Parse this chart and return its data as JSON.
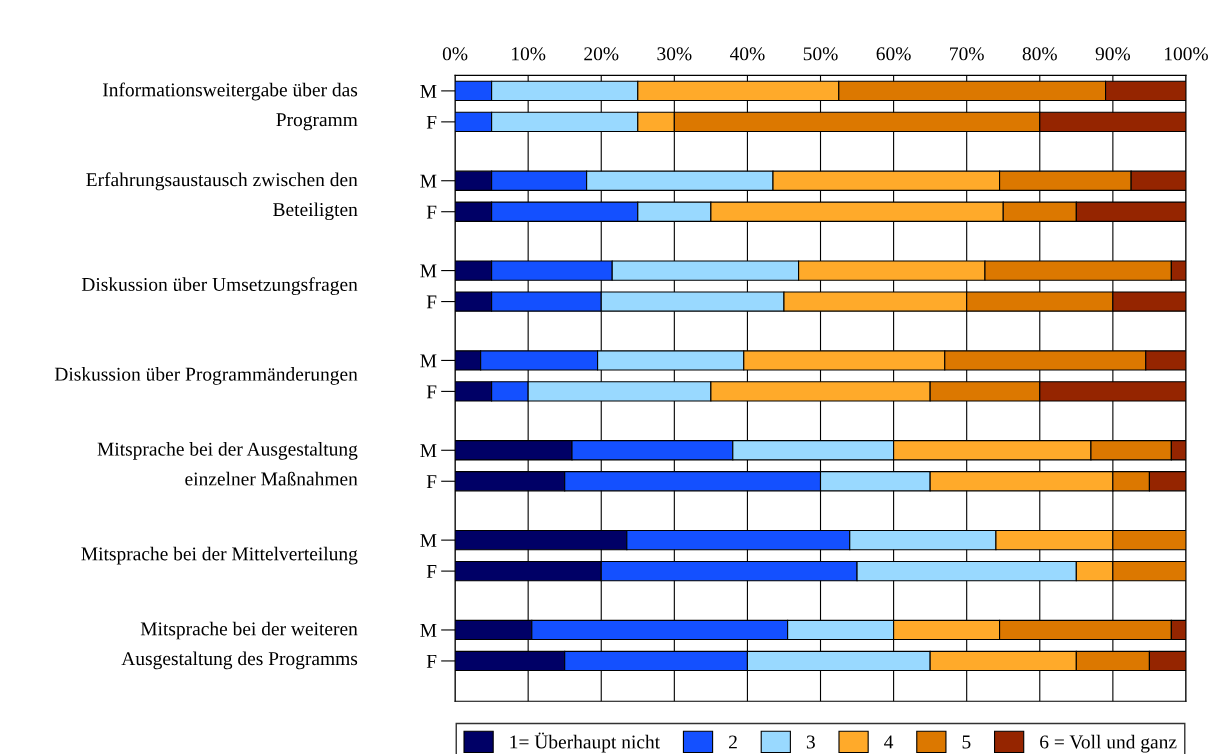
{
  "chart_data": {
    "type": "bar",
    "orientation": "horizontal",
    "stacked": true,
    "categories": [
      "M",
      "F",
      "M",
      "F",
      "M",
      "F",
      "M",
      "F",
      "M",
      "F",
      "M",
      "F",
      "M",
      "F"
    ],
    "series": [
      {
        "name": "1= Überhaupt nicht",
        "color": "#000066",
        "values": [
          0,
          0,
          5,
          5,
          5,
          5,
          3.5,
          5,
          16,
          15,
          23.5,
          20,
          10.5,
          15
        ]
      },
      {
        "name": "2",
        "color": "#1450ff",
        "values": [
          5,
          5,
          13,
          20,
          16.5,
          15,
          16,
          5,
          22,
          35,
          30.5,
          35,
          35,
          25
        ]
      },
      {
        "name": "3",
        "color": "#99d9ff",
        "values": [
          20,
          20,
          25.5,
          10,
          25.5,
          25,
          20,
          25,
          22,
          15,
          20,
          30,
          14.5,
          25
        ]
      },
      {
        "name": "4",
        "color": "#ffaa2a",
        "values": [
          27.5,
          5,
          31,
          40,
          25.5,
          25,
          27.5,
          30,
          27,
          25,
          16,
          5,
          14.5,
          20
        ]
      },
      {
        "name": "5",
        "color": "#dc7800",
        "values": [
          36.5,
          50,
          18,
          10,
          25.5,
          20,
          27.5,
          15,
          11,
          5,
          10,
          10,
          23.5,
          10
        ]
      },
      {
        "name": "6 = Voll und ganz",
        "color": "#952500",
        "values": [
          11,
          20,
          7.5,
          15,
          2,
          10,
          5.5,
          20,
          2,
          5,
          null,
          null,
          2,
          5
        ]
      }
    ],
    "xlim": [
      0,
      100
    ],
    "xticks": [
      {
        "value": 0,
        "label": "0%"
      },
      {
        "value": 10,
        "label": "10%"
      },
      {
        "value": 20,
        "label": "20%"
      },
      {
        "value": 30,
        "label": "30%"
      },
      {
        "value": 40,
        "label": "40%"
      },
      {
        "value": 50,
        "label": "50%"
      },
      {
        "value": 60,
        "label": "60%"
      },
      {
        "value": 70,
        "label": "70%"
      },
      {
        "value": 80,
        "label": "80%"
      },
      {
        "value": 90,
        "label": "90%"
      },
      {
        "value": 100,
        "label": "100%"
      }
    ],
    "grid": "x",
    "legend": "bottom",
    "annotations": [
      "Informationsweitergabe über das\nProgramm",
      "Erfahrungsaustausch zwischen den\nBeteiligten",
      "Diskussion über Umsetzungsfragen",
      "Diskussion über Programmänderungen",
      "Mitsprache bei der Ausgestaltung\neinzelner Maßnahmen",
      "Mitsprache bei der Mittelverteilung",
      "Mitsprache bei der weiteren\nAusgestaltung des Programms"
    ]
  }
}
